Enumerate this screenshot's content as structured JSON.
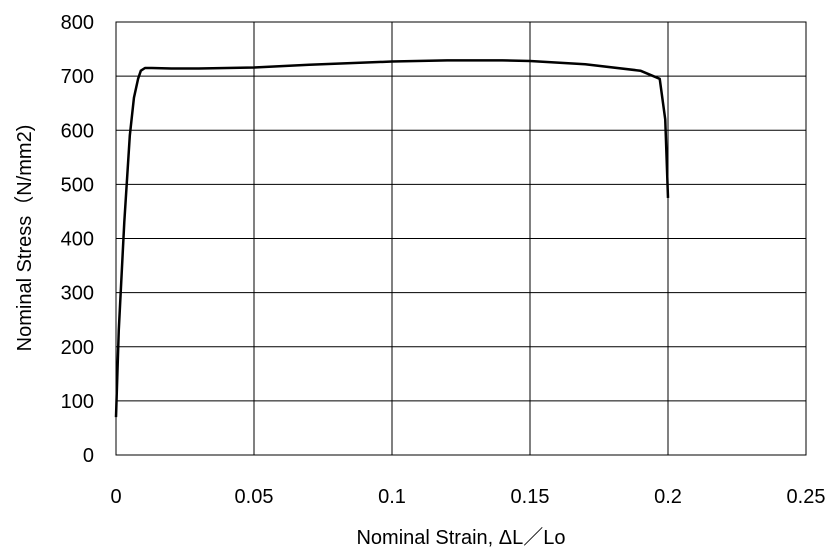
{
  "chart_data": {
    "type": "line",
    "title": "",
    "xlabel": "Nominal Strain,  ΔL／Lo",
    "ylabel": "Nominal Stress（N/mm2)",
    "xlim": [
      0,
      0.25
    ],
    "ylim": [
      0,
      800
    ],
    "xticks": [
      0,
      0.05,
      0.1,
      0.15,
      0.2,
      0.25
    ],
    "xtick_labels": [
      "0",
      "0.05",
      "0.1",
      "0.15",
      "0.2",
      "0.25"
    ],
    "yticks": [
      0,
      100,
      200,
      300,
      400,
      500,
      600,
      700,
      800
    ],
    "ytick_labels": [
      "0",
      "100",
      "200",
      "300",
      "400",
      "500",
      "600",
      "700",
      "800"
    ],
    "grid": true,
    "legend": "none",
    "line_color": "#000000",
    "series": [
      {
        "x": [
          0.0,
          0.001,
          0.003,
          0.005,
          0.0065,
          0.008,
          0.009,
          0.0105,
          0.013,
          0.02,
          0.03,
          0.05,
          0.07,
          0.1,
          0.12,
          0.14,
          0.15,
          0.17,
          0.19,
          0.197,
          0.199,
          0.2
        ],
        "y": [
          70,
          230,
          430,
          590,
          660,
          695,
          710,
          715,
          715,
          714,
          714,
          716,
          721,
          727,
          729,
          729,
          728,
          722,
          710,
          695,
          620,
          475
        ]
      }
    ]
  }
}
